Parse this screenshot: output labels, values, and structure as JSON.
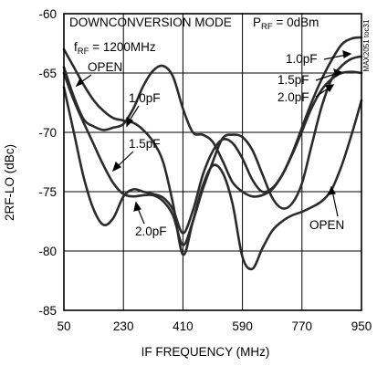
{
  "chart_data": {
    "type": "line",
    "xlabel": "IF FREQUENCY (MHz)",
    "ylabel": "2RF-LO (dBc)",
    "xlim": [
      50,
      950
    ],
    "ylim": [
      -85,
      -60
    ],
    "x_ticks": [
      50,
      230,
      410,
      590,
      770,
      950
    ],
    "y_ticks": [
      -60,
      -65,
      -70,
      -75,
      -80,
      -85
    ],
    "grid": true,
    "legend": "none",
    "annotations": {
      "mode": "DOWNCONVERSION MODE",
      "prf_main": "P",
      "prf_sub": "RF",
      "prf_rest": " = 0dBm",
      "frf_main": "f",
      "frf_sub": "RF",
      "frf_rest": " = 1200MHz",
      "code": "MAX2051 toc31"
    },
    "curve_labels": {
      "open_left": "OPEN",
      "c10_left": "1.0pF",
      "c15_left": "1.5pF",
      "c20_left": "2.0pF",
      "c10_right": "1.0pF",
      "c15_right": "1.5pF",
      "c20_right": "2.0pF",
      "open_right": "OPEN"
    },
    "series": [
      {
        "name": "OPEN",
        "x": [
          50,
          80,
          110,
          140,
          170,
          200,
          230,
          260,
          290,
          320,
          350,
          380,
          410,
          440,
          470,
          500,
          530,
          560,
          590,
          620,
          650,
          680,
          710,
          740,
          770,
          800,
          830,
          860,
          890,
          920,
          950
        ],
        "y": [
          -63,
          -64.5,
          -66,
          -67.3,
          -68.2,
          -68.8,
          -69,
          -69.2,
          -69.8,
          -70.8,
          -72.5,
          -76,
          -80.3,
          -77.5,
          -74.5,
          -72.8,
          -73.4,
          -76,
          -80.5,
          -81.5,
          -79.8,
          -78.3,
          -77.5,
          -77,
          -76.7,
          -76.3,
          -75.8,
          -74.8,
          -72.8,
          -70.2,
          -67.3
        ]
      },
      {
        "name": "1.0pF",
        "x": [
          50,
          80,
          110,
          140,
          170,
          200,
          230,
          260,
          290,
          320,
          350,
          380,
          410,
          440,
          470,
          500,
          530,
          560,
          590,
          620,
          650,
          680,
          710,
          740,
          770,
          800,
          830,
          860,
          890,
          920,
          950
        ],
        "y": [
          -64.5,
          -67,
          -68.9,
          -69.5,
          -69.8,
          -69.6,
          -69.3,
          -68,
          -66.1,
          -64.8,
          -64.4,
          -65.3,
          -68,
          -70,
          -70.2,
          -70.8,
          -72.4,
          -74.2,
          -75,
          -75.4,
          -75.3,
          -74.8,
          -73.6,
          -71.8,
          -69.6,
          -67.4,
          -65.5,
          -63.9,
          -62.6,
          -62.1,
          -62
        ]
      },
      {
        "name": "1.5pF",
        "x": [
          50,
          80,
          110,
          140,
          170,
          200,
          230,
          260,
          290,
          320,
          350,
          380,
          410,
          440,
          470,
          500,
          530,
          560,
          590,
          620,
          650,
          680,
          710,
          740,
          770,
          800,
          830,
          860,
          890,
          920,
          950
        ],
        "y": [
          -65,
          -67.3,
          -69.2,
          -71,
          -72.8,
          -74.3,
          -75.2,
          -75.4,
          -75.3,
          -75.3,
          -75.8,
          -77,
          -79.5,
          -77.5,
          -74.8,
          -72.5,
          -70.5,
          -70.2,
          -70.4,
          -71.5,
          -73.5,
          -75.5,
          -76.4,
          -76,
          -74.3,
          -71,
          -67.8,
          -65.5,
          -64.4,
          -63.8,
          -63.6
        ]
      },
      {
        "name": "2.0pF",
        "x": [
          50,
          80,
          110,
          140,
          170,
          200,
          230,
          260,
          290,
          320,
          350,
          380,
          410,
          440,
          470,
          500,
          530,
          560,
          590,
          620,
          650,
          680,
          710,
          740,
          770,
          800,
          830,
          860,
          890,
          920,
          950
        ],
        "y": [
          -66.2,
          -70,
          -73.8,
          -76.5,
          -77.8,
          -77.2,
          -75.4,
          -74.8,
          -75,
          -75.2,
          -75.5,
          -76.5,
          -78.5,
          -76.6,
          -73.6,
          -71.6,
          -70.6,
          -70.9,
          -72.2,
          -74,
          -75,
          -74.7,
          -73.6,
          -71.9,
          -69.9,
          -67.9,
          -66.4,
          -65.5,
          -65,
          -64.9,
          -65
        ]
      }
    ]
  }
}
